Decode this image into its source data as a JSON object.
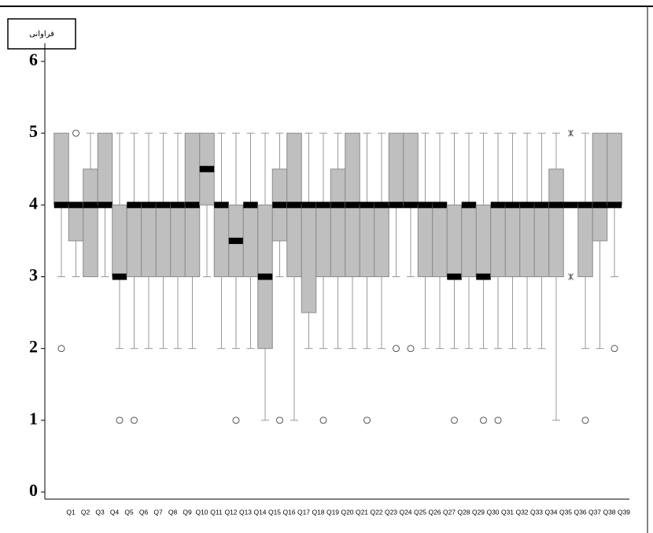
{
  "chart_data": {
    "type": "box",
    "y_label": "فراوانی",
    "categories": [
      "Q1",
      "Q2",
      "Q3",
      "Q4",
      "Q5",
      "Q6",
      "Q7",
      "Q8",
      "Q9",
      "Q10",
      "Q11",
      "Q12",
      "Q13",
      "Q14",
      "Q15",
      "Q16",
      "Q17",
      "Q18",
      "Q19",
      "Q20",
      "Q21",
      "Q22",
      "Q23",
      "Q24",
      "Q25",
      "Q26",
      "Q27",
      "Q28",
      "Q29",
      "Q30",
      "Q31",
      "Q32",
      "Q33",
      "Q34",
      "Q35",
      "Q36",
      "Q37",
      "Q38",
      "Q39"
    ],
    "boxes": [
      {
        "low": 3,
        "q1": 4,
        "median": 4,
        "q3": 5,
        "high": 5,
        "outliers": [
          2
        ]
      },
      {
        "low": 3,
        "q1": 3.5,
        "median": 4,
        "q3": 4,
        "high": 4,
        "outliers": [
          5
        ]
      },
      {
        "low": 3,
        "q1": 3,
        "median": 4,
        "q3": 4.5,
        "high": 5,
        "outliers": []
      },
      {
        "low": 3,
        "q1": 4,
        "median": 4,
        "q3": 5,
        "high": 5,
        "outliers": []
      },
      {
        "low": 2,
        "q1": 3,
        "median": 3,
        "q3": 4,
        "high": 5,
        "outliers": [
          1
        ]
      },
      {
        "low": 2,
        "q1": 3,
        "median": 4,
        "q3": 4,
        "high": 5,
        "outliers": [
          1
        ]
      },
      {
        "low": 2,
        "q1": 3,
        "median": 4,
        "q3": 4,
        "high": 5,
        "outliers": []
      },
      {
        "low": 2,
        "q1": 3,
        "median": 4,
        "q3": 4,
        "high": 5,
        "outliers": []
      },
      {
        "low": 2,
        "q1": 3,
        "median": 4,
        "q3": 4,
        "high": 5,
        "outliers": []
      },
      {
        "low": 2,
        "q1": 3,
        "median": 4,
        "q3": 5,
        "high": 5,
        "outliers": []
      },
      {
        "low": 3,
        "q1": 4,
        "median": 4.5,
        "q3": 5,
        "high": 5,
        "outliers": []
      },
      {
        "low": 2,
        "q1": 3,
        "median": 4,
        "q3": 4,
        "high": 5,
        "outliers": []
      },
      {
        "low": 2,
        "q1": 3,
        "median": 3.5,
        "q3": 4,
        "high": 5,
        "outliers": [
          1
        ]
      },
      {
        "low": 2,
        "q1": 3,
        "median": 4,
        "q3": 4,
        "high": 5,
        "outliers": []
      },
      {
        "low": 1,
        "q1": 2,
        "median": 3,
        "q3": 4,
        "high": 5,
        "outliers": []
      },
      {
        "low": 3,
        "q1": 3.5,
        "median": 4,
        "q3": 4.5,
        "high": 5,
        "outliers": [
          1
        ]
      },
      {
        "low": 1,
        "q1": 3,
        "median": 4,
        "q3": 5,
        "high": 5,
        "outliers": []
      },
      {
        "low": 2,
        "q1": 2.5,
        "median": 4,
        "q3": 4,
        "high": 5,
        "outliers": []
      },
      {
        "low": 2,
        "q1": 3,
        "median": 4,
        "q3": 4,
        "high": 5,
        "outliers": [
          1
        ]
      },
      {
        "low": 2,
        "q1": 3,
        "median": 4,
        "q3": 4.5,
        "high": 5,
        "outliers": []
      },
      {
        "low": 2,
        "q1": 3,
        "median": 4,
        "q3": 5,
        "high": 5,
        "outliers": []
      },
      {
        "low": 2,
        "q1": 3,
        "median": 4,
        "q3": 4,
        "high": 5,
        "outliers": [
          1
        ]
      },
      {
        "low": 2,
        "q1": 3,
        "median": 4,
        "q3": 4,
        "high": 5,
        "outliers": []
      },
      {
        "low": 3,
        "q1": 4,
        "median": 4,
        "q3": 5,
        "high": 5,
        "outliers": [
          2
        ]
      },
      {
        "low": 3,
        "q1": 4,
        "median": 4,
        "q3": 5,
        "high": 5,
        "outliers": [
          2
        ]
      },
      {
        "low": 2,
        "q1": 3,
        "median": 4,
        "q3": 4,
        "high": 5,
        "outliers": []
      },
      {
        "low": 2,
        "q1": 3,
        "median": 4,
        "q3": 4,
        "high": 5,
        "outliers": []
      },
      {
        "low": 2,
        "q1": 3,
        "median": 3,
        "q3": 4,
        "high": 5,
        "outliers": [
          1
        ]
      },
      {
        "low": 2,
        "q1": 3,
        "median": 4,
        "q3": 4,
        "high": 5,
        "outliers": []
      },
      {
        "low": 2,
        "q1": 3,
        "median": 3,
        "q3": 4,
        "high": 5,
        "outliers": [
          1
        ]
      },
      {
        "low": 2,
        "q1": 3,
        "median": 4,
        "q3": 4,
        "high": 5,
        "outliers": [
          1
        ]
      },
      {
        "low": 2,
        "q1": 3,
        "median": 4,
        "q3": 4,
        "high": 5,
        "outliers": []
      },
      {
        "low": 2,
        "q1": 3,
        "median": 4,
        "q3": 4,
        "high": 5,
        "outliers": []
      },
      {
        "low": 2,
        "q1": 3,
        "median": 4,
        "q3": 4,
        "high": 5,
        "outliers": []
      },
      {
        "low": 1,
        "q1": 3,
        "median": 4,
        "q3": 4.5,
        "high": 5,
        "outliers": []
      },
      {
        "low": 4,
        "q1": 4,
        "median": 4,
        "q3": 4,
        "high": 4,
        "outliers": [],
        "extremes": [
          5,
          3
        ]
      },
      {
        "low": 2,
        "q1": 3,
        "median": 4,
        "q3": 4,
        "high": 5,
        "outliers": [
          1
        ]
      },
      {
        "low": 2,
        "q1": 3.5,
        "median": 4,
        "q3": 5,
        "high": 5,
        "outliers": []
      },
      {
        "low": 3,
        "q1": 4,
        "median": 4,
        "q3": 5,
        "high": 5,
        "outliers": [
          2
        ]
      }
    ],
    "ylim": [
      0,
      6
    ],
    "yticks": [
      0,
      1,
      2,
      3,
      4,
      5,
      6
    ],
    "color": "#bfbfbf"
  }
}
